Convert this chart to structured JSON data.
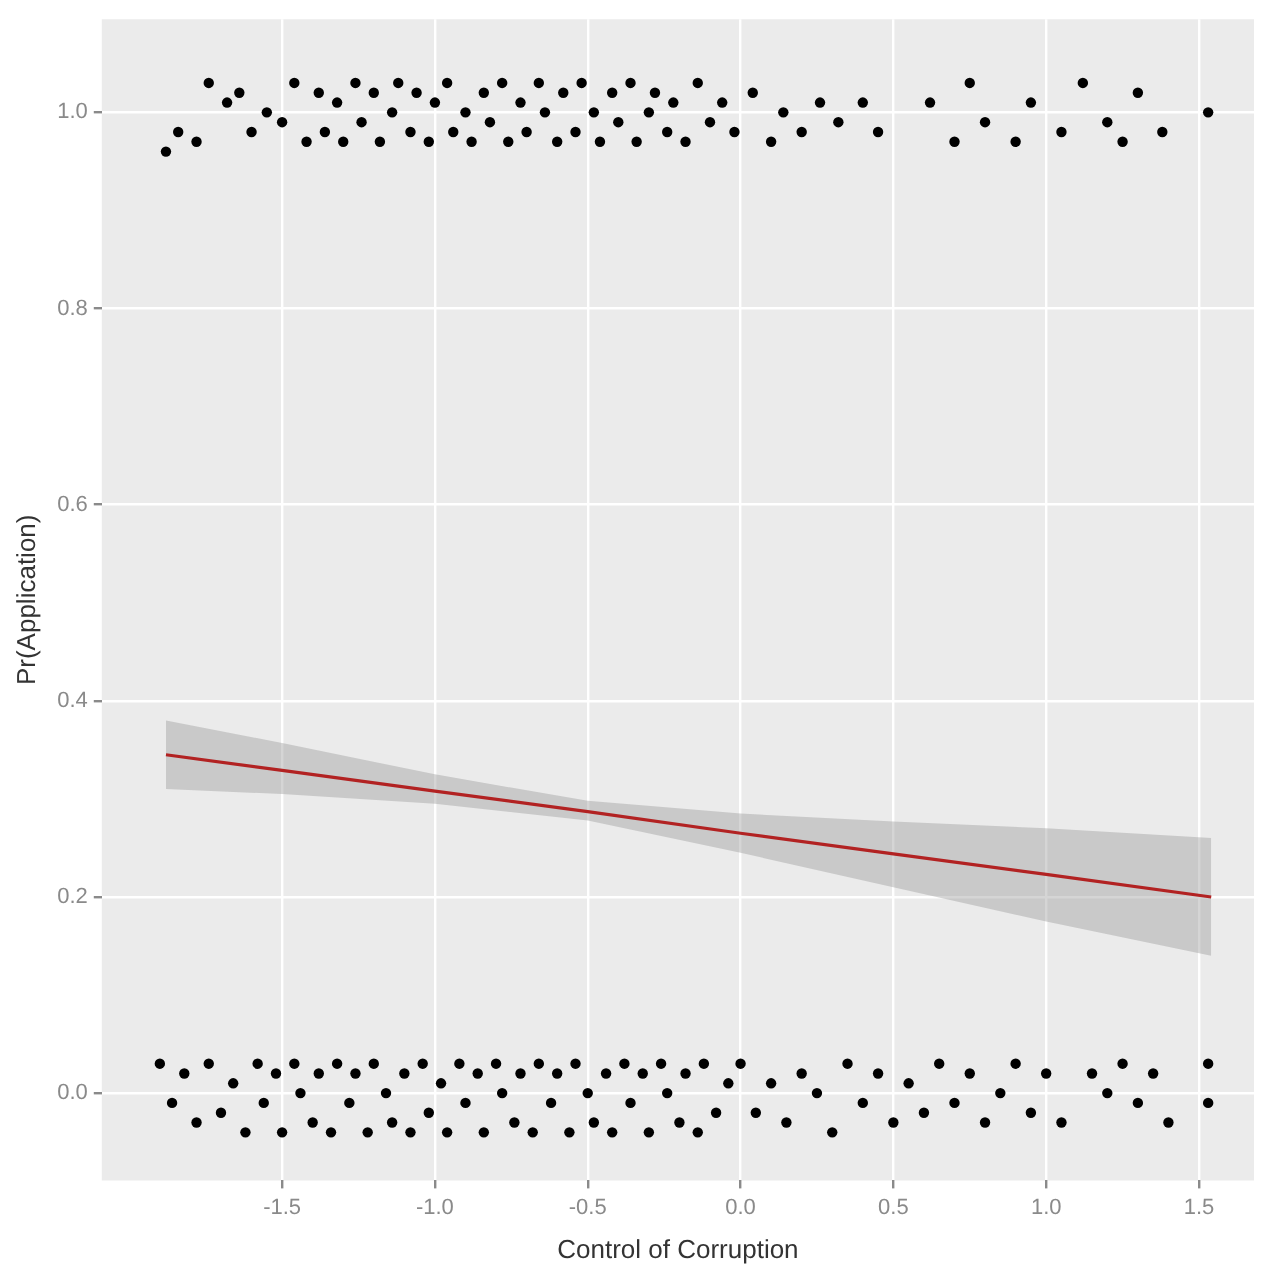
{
  "chart_data": {
    "type": "scatter",
    "xlabel": "Control of Corruption",
    "ylabel": "Pr(Application)",
    "xlim": [
      -2.09,
      1.68
    ],
    "ylim": [
      -0.089,
      1.095
    ],
    "xticks": [
      {
        "value": -1.5,
        "label": "-1.5"
      },
      {
        "value": -1,
        "label": "-1.0"
      },
      {
        "value": -0.5,
        "label": "-0.5"
      },
      {
        "value": 0,
        "label": "0.0"
      },
      {
        "value": 0.5,
        "label": "0.5"
      },
      {
        "value": 1,
        "label": "1.0"
      },
      {
        "value": 1.5,
        "label": "1.5"
      }
    ],
    "yticks": [
      {
        "value": 0,
        "label": "0.0"
      },
      {
        "value": 0.2,
        "label": "0.2"
      },
      {
        "value": 0.4,
        "label": "0.4"
      },
      {
        "value": 0.6,
        "label": "0.6"
      },
      {
        "value": 0.8,
        "label": "0.8"
      },
      {
        "value": 1,
        "label": "1.0"
      }
    ],
    "grid": true,
    "marker": "circle",
    "series": [
      {
        "type": "scatter",
        "color": "#000000",
        "x": [
          -1.88,
          -1.84,
          -1.78,
          -1.74,
          -1.68,
          -1.64,
          -1.6,
          -1.55,
          -1.5,
          -1.46,
          -1.42,
          -1.38,
          -1.36,
          -1.32,
          -1.3,
          -1.26,
          -1.24,
          -1.2,
          -1.18,
          -1.14,
          -1.12,
          -1.08,
          -1.06,
          -1.02,
          -1.0,
          -0.96,
          -0.94,
          -0.9,
          -0.88,
          -0.84,
          -0.82,
          -0.78,
          -0.76,
          -0.72,
          -0.7,
          -0.66,
          -0.64,
          -0.6,
          -0.58,
          -0.54,
          -0.52,
          -0.48,
          -0.46,
          -0.42,
          -0.4,
          -0.36,
          -0.34,
          -0.3,
          -0.28,
          -0.24,
          -0.22,
          -0.18,
          -0.14,
          -0.1,
          -0.06,
          -0.02,
          0.04,
          0.1,
          0.14,
          0.2,
          0.26,
          0.32,
          0.4,
          0.45,
          0.62,
          0.7,
          0.75,
          0.8,
          0.9,
          0.95,
          1.05,
          1.12,
          1.2,
          1.25,
          1.3,
          1.38,
          1.53
        ],
        "values": [
          0.96,
          0.98,
          0.97,
          1.03,
          1.01,
          1.02,
          0.98,
          1.0,
          0.99,
          1.03,
          0.97,
          1.02,
          0.98,
          1.01,
          0.97,
          1.03,
          0.99,
          1.02,
          0.97,
          1.0,
          1.03,
          0.98,
          1.02,
          0.97,
          1.01,
          1.03,
          0.98,
          1.0,
          0.97,
          1.02,
          0.99,
          1.03,
          0.97,
          1.01,
          0.98,
          1.03,
          1.0,
          0.97,
          1.02,
          0.98,
          1.03,
          1.0,
          0.97,
          1.02,
          0.99,
          1.03,
          0.97,
          1.0,
          1.02,
          0.98,
          1.01,
          0.97,
          1.03,
          0.99,
          1.01,
          0.98,
          1.02,
          0.97,
          1.0,
          0.98,
          1.01,
          0.99,
          1.01,
          0.98,
          1.01,
          0.97,
          1.03,
          0.99,
          0.97,
          1.01,
          0.98,
          1.03,
          0.99,
          0.97,
          1.02,
          0.98,
          1.0
        ]
      },
      {
        "type": "scatter",
        "color": "#000000",
        "x": [
          -1.9,
          -1.86,
          -1.82,
          -1.78,
          -1.74,
          -1.7,
          -1.66,
          -1.62,
          -1.58,
          -1.56,
          -1.52,
          -1.5,
          -1.46,
          -1.44,
          -1.4,
          -1.38,
          -1.34,
          -1.32,
          -1.28,
          -1.26,
          -1.22,
          -1.2,
          -1.16,
          -1.14,
          -1.1,
          -1.08,
          -1.04,
          -1.02,
          -0.98,
          -0.96,
          -0.92,
          -0.9,
          -0.86,
          -0.84,
          -0.8,
          -0.78,
          -0.74,
          -0.72,
          -0.68,
          -0.66,
          -0.62,
          -0.6,
          -0.56,
          -0.54,
          -0.5,
          -0.48,
          -0.44,
          -0.42,
          -0.38,
          -0.36,
          -0.32,
          -0.3,
          -0.26,
          -0.24,
          -0.2,
          -0.18,
          -0.14,
          -0.12,
          -0.08,
          -0.04,
          0.0,
          0.05,
          0.1,
          0.15,
          0.2,
          0.25,
          0.3,
          0.35,
          0.4,
          0.45,
          0.5,
          0.55,
          0.6,
          0.65,
          0.7,
          0.75,
          0.8,
          0.85,
          0.9,
          0.95,
          1.0,
          1.05,
          1.15,
          1.2,
          1.25,
          1.3,
          1.35,
          1.4,
          1.53,
          1.53
        ],
        "values": [
          0.03,
          -0.01,
          0.02,
          -0.03,
          0.03,
          -0.02,
          0.01,
          -0.04,
          0.03,
          -0.01,
          0.02,
          -0.04,
          0.03,
          0.0,
          -0.03,
          0.02,
          -0.04,
          0.03,
          -0.01,
          0.02,
          -0.04,
          0.03,
          0.0,
          -0.03,
          0.02,
          -0.04,
          0.03,
          -0.02,
          0.01,
          -0.04,
          0.03,
          -0.01,
          0.02,
          -0.04,
          0.03,
          0.0,
          -0.03,
          0.02,
          -0.04,
          0.03,
          -0.01,
          0.02,
          -0.04,
          0.03,
          0.0,
          -0.03,
          0.02,
          -0.04,
          0.03,
          -0.01,
          0.02,
          -0.04,
          0.03,
          0.0,
          -0.03,
          0.02,
          -0.04,
          0.03,
          -0.02,
          0.01,
          0.03,
          -0.02,
          0.01,
          -0.03,
          0.02,
          0.0,
          -0.04,
          0.03,
          -0.01,
          0.02,
          -0.03,
          0.01,
          -0.02,
          0.03,
          -0.01,
          0.02,
          -0.03,
          0.0,
          0.03,
          -0.02,
          0.02,
          -0.03,
          0.02,
          0.0,
          0.03,
          -0.01,
          0.02,
          -0.03,
          0.03,
          -0.01
        ]
      },
      {
        "type": "line",
        "color": "#b22222",
        "marker": "none",
        "x": [
          -1.88,
          -1.5,
          -1,
          -0.5,
          0,
          0.5,
          1,
          1.54
        ],
        "values": [
          0.345,
          0.329,
          0.308,
          0.287,
          0.265,
          0.244,
          0.223,
          0.2
        ],
        "lower": [
          0.31,
          0.305,
          0.295,
          0.278,
          0.245,
          0.21,
          0.175,
          0.14
        ],
        "upper": [
          0.38,
          0.357,
          0.325,
          0.298,
          0.285,
          0.277,
          0.27,
          0.26
        ]
      }
    ]
  }
}
